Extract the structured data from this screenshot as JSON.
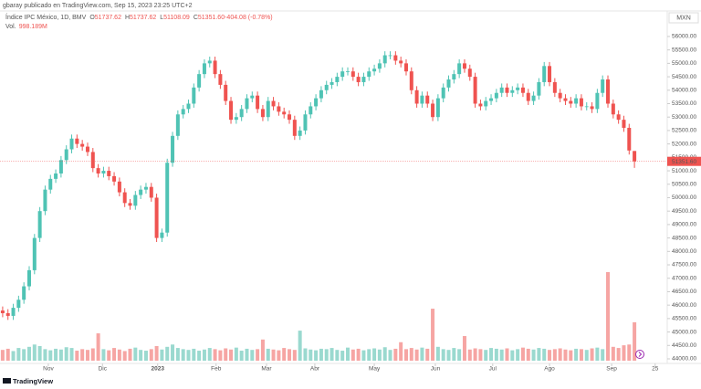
{
  "header": {
    "author_line": "gbaray publicado en TradingView.com, Sep 15, 2023 23:25 UTC+2",
    "footer": "TradingView"
  },
  "chart_data": {
    "type": "candlestick",
    "symbol": "Índice IPC México, 1D, BMV",
    "quote": [
      "O",
      "51737.62",
      "H",
      "51737.62",
      "L",
      "51108.09",
      "C",
      "51351.60",
      "-404.08 (-0.78%)"
    ],
    "volume_label": "Vol.",
    "volume_value_label": "998.189M",
    "currency": "MXN",
    "last_price_label": "51351.60",
    "up_color": "#4fc3b4",
    "down_color": "#ef5350",
    "volume_up_color": "#9ad9cf",
    "volume_down_color": "#f6a5a3",
    "grid": false,
    "xlim": [
      -0.5,
      125
    ],
    "xticks": [
      {
        "value": 8.6,
        "label": "Nov"
      },
      {
        "value": 18.8,
        "label": "Dic"
      },
      {
        "value": 29.2,
        "label": "2023"
      },
      {
        "value": 40.2,
        "label": "Feb"
      },
      {
        "value": 49.7,
        "label": "Mar"
      },
      {
        "value": 58.8,
        "label": "Abr"
      },
      {
        "value": 70,
        "label": "May"
      },
      {
        "value": 81.5,
        "label": "Jun"
      },
      {
        "value": 92.3,
        "label": "Jul"
      },
      {
        "value": 103,
        "label": "Ago"
      },
      {
        "value": 114.7,
        "label": "Sep"
      },
      {
        "value": 122.9,
        "label": "25"
      }
    ],
    "ylim": [
      43830,
      56950
    ],
    "yticks": [
      {
        "value": 44000,
        "label": "44000.00"
      },
      {
        "value": 44500,
        "label": "44500.00"
      },
      {
        "value": 45000,
        "label": "45000.00"
      },
      {
        "value": 45500,
        "label": "45500.00"
      },
      {
        "value": 46000,
        "label": "46000.00"
      },
      {
        "value": 46500,
        "label": "46500.00"
      },
      {
        "value": 47000,
        "label": "47000.00"
      },
      {
        "value": 47500,
        "label": "47500.00"
      },
      {
        "value": 48000,
        "label": "48000.00"
      },
      {
        "value": 48500,
        "label": "48500.00"
      },
      {
        "value": 49000,
        "label": "49000.00"
      },
      {
        "value": 49500,
        "label": "49500.00"
      },
      {
        "value": 50000,
        "label": "50000.00"
      },
      {
        "value": 50500,
        "label": "50500.00"
      },
      {
        "value": 51000,
        "label": "51000.00"
      },
      {
        "value": 51500,
        "label": "51500.00"
      },
      {
        "value": 52000,
        "label": "52000.00"
      },
      {
        "value": 52500,
        "label": "52500.00"
      },
      {
        "value": 53000,
        "label": "53000.00"
      },
      {
        "value": 53500,
        "label": "53500.00"
      },
      {
        "value": 54000,
        "label": "54000.00"
      },
      {
        "value": 54500,
        "label": "54500.00"
      },
      {
        "value": 55000,
        "label": "55000.00"
      },
      {
        "value": 55500,
        "label": "55500.00"
      },
      {
        "value": 56000,
        "label": "56000.00"
      }
    ],
    "open": [
      45800,
      45700,
      45600,
      45900,
      46200,
      46700,
      47300,
      48500,
      49500,
      50300,
      50700,
      50900,
      51400,
      51800,
      52200,
      52000,
      51900,
      51700,
      51100,
      50900,
      51000,
      50800,
      50600,
      50200,
      49800,
      49700,
      50100,
      50300,
      50400,
      50000,
      48500,
      48700,
      51300,
      52300,
      53100,
      53300,
      53500,
      54100,
      54600,
      55000,
      55100,
      54600,
      54200,
      53600,
      52900,
      53000,
      53300,
      53700,
      53800,
      53300,
      53000,
      53600,
      53400,
      53200,
      53100,
      52900,
      52300,
      52500,
      53100,
      53400,
      53700,
      54000,
      54200,
      54300,
      54500,
      54700,
      54700,
      54500,
      54300,
      54500,
      54700,
      54800,
      55000,
      55300,
      55300,
      55100,
      55000,
      54700,
      54000,
      53500,
      53800,
      53500,
      53000,
      53700,
      54100,
      54400,
      54600,
      55000,
      54800,
      54500,
      53500,
      53400,
      53600,
      53700,
      53900,
      54100,
      53900,
      54000,
      54100,
      53900,
      53600,
      53800,
      54300,
      54900,
      54300,
      53900,
      53700,
      53600,
      53500,
      53700,
      53400,
      53400,
      53300,
      53900,
      54400,
      53500,
      53100,
      52900,
      52600,
      51737.62
    ],
    "high": [
      45950,
      45850,
      46050,
      46350,
      46850,
      47450,
      48650,
      49650,
      50450,
      50850,
      51050,
      51550,
      51950,
      52350,
      52350,
      52150,
      52050,
      51850,
      51250,
      51150,
      51150,
      50950,
      50750,
      50350,
      49950,
      50250,
      50450,
      50550,
      50550,
      50150,
      48850,
      51450,
      52450,
      53250,
      53450,
      53650,
      54250,
      54750,
      55150,
      55250,
      55250,
      54750,
      54350,
      53750,
      53150,
      53450,
      53850,
      53950,
      53950,
      53450,
      53750,
      53750,
      53550,
      53350,
      53250,
      53050,
      52650,
      53250,
      53550,
      53850,
      54150,
      54350,
      54450,
      54650,
      54850,
      54850,
      54850,
      54650,
      54650,
      54850,
      54950,
      55150,
      55450,
      55450,
      55450,
      55250,
      55150,
      54850,
      54150,
      53950,
      53950,
      53650,
      53850,
      54250,
      54550,
      54750,
      55150,
      55150,
      54950,
      54650,
      53650,
      53750,
      53850,
      54050,
      54250,
      54250,
      54150,
      54250,
      54250,
      54050,
      53950,
      54450,
      55050,
      55050,
      54450,
      54050,
      53850,
      53750,
      53850,
      53850,
      53550,
      53550,
      54050,
      54550,
      54550,
      53650,
      53250,
      53050,
      52750,
      51737.62
    ],
    "low": [
      45550,
      45450,
      45450,
      45750,
      46050,
      46550,
      47150,
      48350,
      49350,
      50150,
      50550,
      50750,
      51250,
      51650,
      51850,
      51750,
      51550,
      50950,
      50750,
      50750,
      50650,
      50450,
      50050,
      49650,
      49550,
      49550,
      49950,
      50150,
      49850,
      48350,
      48350,
      48550,
      51150,
      52150,
      52950,
      53150,
      53350,
      53950,
      54450,
      54850,
      54450,
      54050,
      53450,
      52750,
      52750,
      52850,
      53150,
      53550,
      53150,
      52850,
      52850,
      53250,
      53050,
      52950,
      52750,
      52150,
      52150,
      52350,
      52950,
      53250,
      53550,
      53850,
      54050,
      54150,
      54350,
      54550,
      54350,
      54150,
      54150,
      54350,
      54550,
      54650,
      54850,
      55150,
      54950,
      54850,
      54550,
      53850,
      53350,
      53350,
      53350,
      52850,
      52850,
      53550,
      53950,
      54250,
      54450,
      54650,
      54350,
      53350,
      53250,
      53250,
      53450,
      53550,
      53750,
      53750,
      53750,
      53850,
      53750,
      53450,
      53450,
      53650,
      54150,
      54150,
      53750,
      53550,
      53450,
      53350,
      53350,
      53250,
      53250,
      53150,
      53150,
      53750,
      53350,
      52950,
      52750,
      52450,
      51605.68,
      51108.09
    ],
    "close": [
      45700,
      45600,
      45900,
      46200,
      46700,
      47300,
      48500,
      49500,
      50300,
      50700,
      50900,
      51400,
      51800,
      52200,
      52000,
      51900,
      51700,
      51100,
      50900,
      51000,
      50800,
      50600,
      50200,
      49800,
      49700,
      50100,
      50300,
      50400,
      50000,
      48500,
      48700,
      51300,
      52300,
      53100,
      53300,
      53500,
      54100,
      54600,
      55000,
      55100,
      54600,
      54200,
      53600,
      52900,
      53000,
      53300,
      53700,
      53800,
      53300,
      53000,
      53600,
      53400,
      53200,
      53100,
      52900,
      52300,
      52500,
      53100,
      53400,
      53700,
      54000,
      54200,
      54300,
      54500,
      54700,
      54700,
      54500,
      54300,
      54500,
      54700,
      54800,
      55000,
      55300,
      55300,
      55100,
      55000,
      54700,
      54000,
      53500,
      53800,
      53500,
      53000,
      53700,
      54100,
      54400,
      54600,
      55000,
      54800,
      54500,
      53500,
      53400,
      53600,
      53700,
      53900,
      54100,
      53900,
      54000,
      54100,
      53900,
      53600,
      53800,
      54300,
      54900,
      54300,
      53900,
      53700,
      53600,
      53500,
      53700,
      53400,
      53400,
      53300,
      53900,
      54400,
      53500,
      53100,
      52900,
      52600,
      51755.68,
      51351.6
    ],
    "volume": [
      280,
      310,
      250,
      330,
      300,
      360,
      420,
      380,
      300,
      270,
      310,
      290,
      350,
      330,
      260,
      300,
      280,
      320,
      710,
      300,
      270,
      330,
      290,
      250,
      310,
      340,
      280,
      260,
      300,
      380,
      290,
      360,
      420,
      330,
      300,
      280,
      310,
      260,
      290,
      330,
      300,
      270,
      320,
      290,
      340,
      260,
      310,
      280,
      300,
      550,
      310,
      290,
      270,
      330,
      300,
      280,
      780,
      320,
      290,
      270,
      310,
      300,
      330,
      280,
      260,
      340,
      290,
      310,
      270,
      300,
      320,
      290,
      350,
      280,
      310,
      480,
      300,
      330,
      290,
      340,
      310,
      1350,
      360,
      300,
      280,
      330,
      300,
      640,
      290,
      320,
      300,
      280,
      330,
      310,
      290,
      320,
      270,
      300,
      340,
      310,
      290,
      330,
      310,
      280,
      300,
      320,
      290,
      270,
      310,
      300,
      280,
      320,
      340,
      300,
      2300,
      360,
      330,
      400,
      420,
      998.189
    ]
  }
}
